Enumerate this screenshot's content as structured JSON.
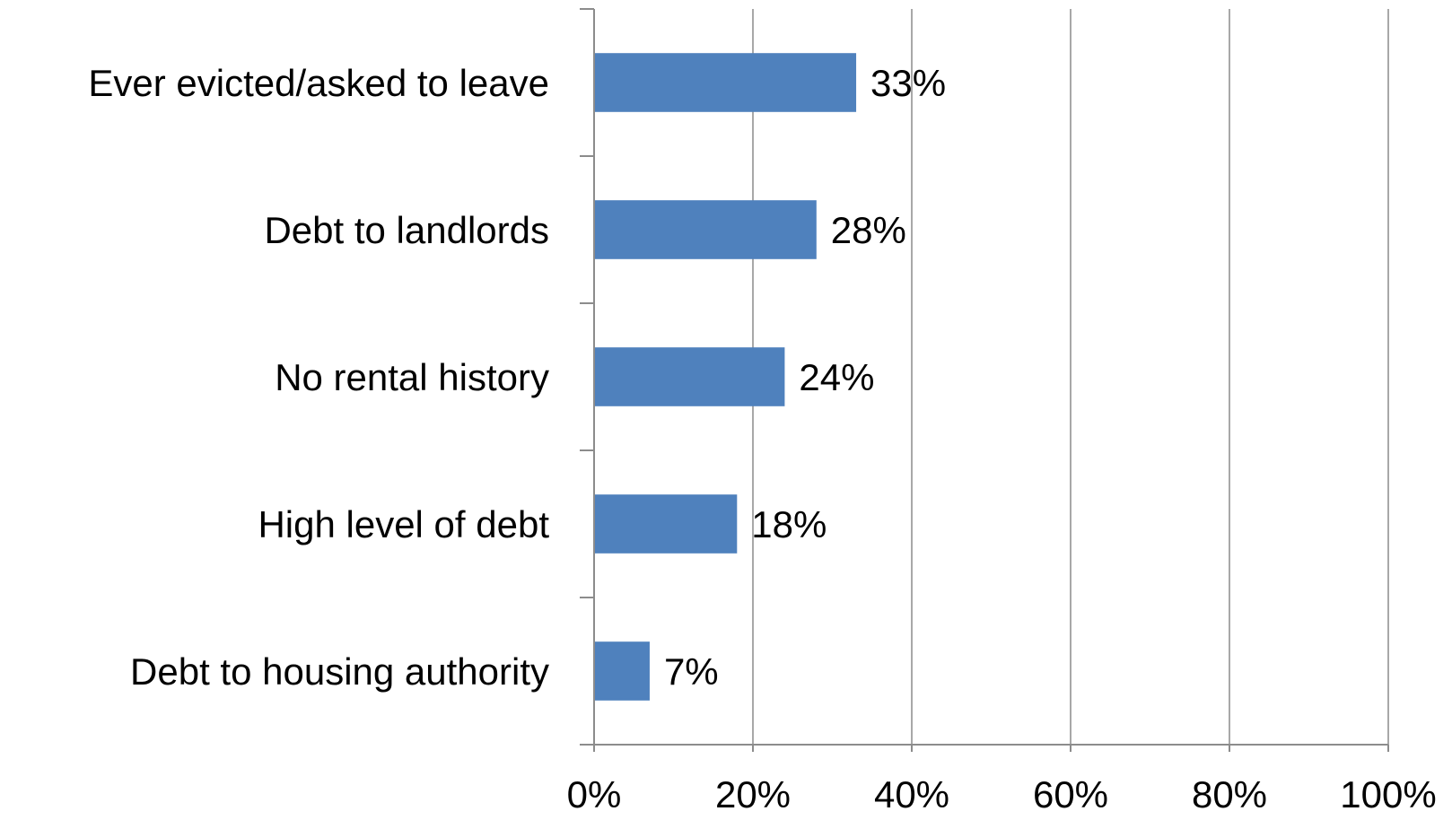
{
  "chart_data": {
    "type": "bar",
    "orientation": "horizontal",
    "categories": [
      "Ever evicted/asked to leave",
      "Debt to landlords",
      "No rental history",
      "High level of debt ",
      "Debt to housing authority"
    ],
    "values": [
      33,
      28,
      24,
      18,
      7
    ],
    "data_labels": [
      "33%",
      "28%",
      "24%",
      "18%",
      "7%"
    ],
    "xlim": [
      0,
      100
    ],
    "xticks": [
      0,
      20,
      40,
      60,
      80,
      100
    ],
    "xtick_labels": [
      "0%",
      "20%",
      "40%",
      "60%",
      "80%",
      "100%"
    ],
    "grid": "vertical",
    "legend": "none",
    "bar_color": "#4f81bd",
    "grid_color": "#8c8c8c"
  }
}
